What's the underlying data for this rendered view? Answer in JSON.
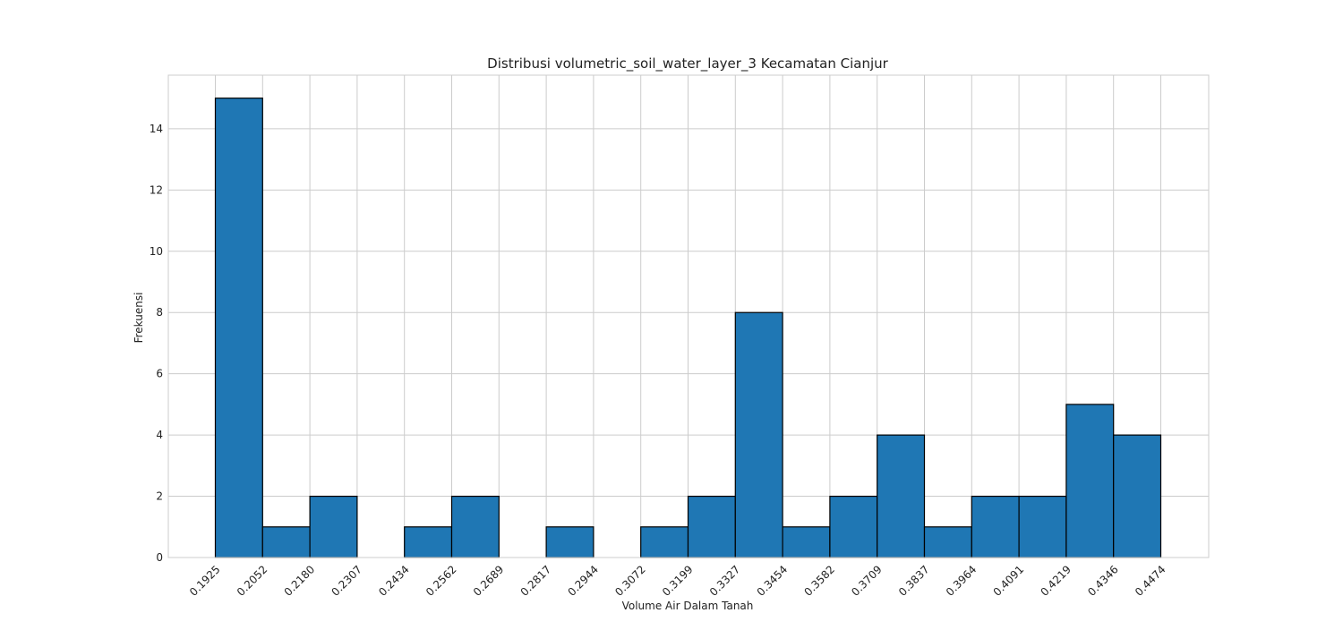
{
  "chart_data": {
    "type": "bar",
    "title": "Distribusi volumetric_soil_water_layer_3 Kecamatan Cianjur",
    "xlabel": "Volume Air Dalam Tanah",
    "ylabel": "Frekuensi",
    "bin_edges": [
      "0.1925",
      "0.2052",
      "0.2180",
      "0.2307",
      "0.2434",
      "0.2562",
      "0.2689",
      "0.2817",
      "0.2944",
      "0.3072",
      "0.3199",
      "0.3327",
      "0.3454",
      "0.3582",
      "0.3709",
      "0.3837",
      "0.3964",
      "0.4091",
      "0.4219",
      "0.4346",
      "0.4474"
    ],
    "values": [
      15,
      1,
      2,
      0,
      1,
      2,
      0,
      1,
      0,
      1,
      2,
      8,
      1,
      2,
      4,
      1,
      2,
      2,
      5,
      4
    ],
    "yticks": [
      0,
      2,
      4,
      6,
      8,
      10,
      12,
      14
    ],
    "ylim": [
      0,
      15.75
    ],
    "grid": true,
    "bar_color": "#1f77b4",
    "edge_color": "#000000"
  }
}
